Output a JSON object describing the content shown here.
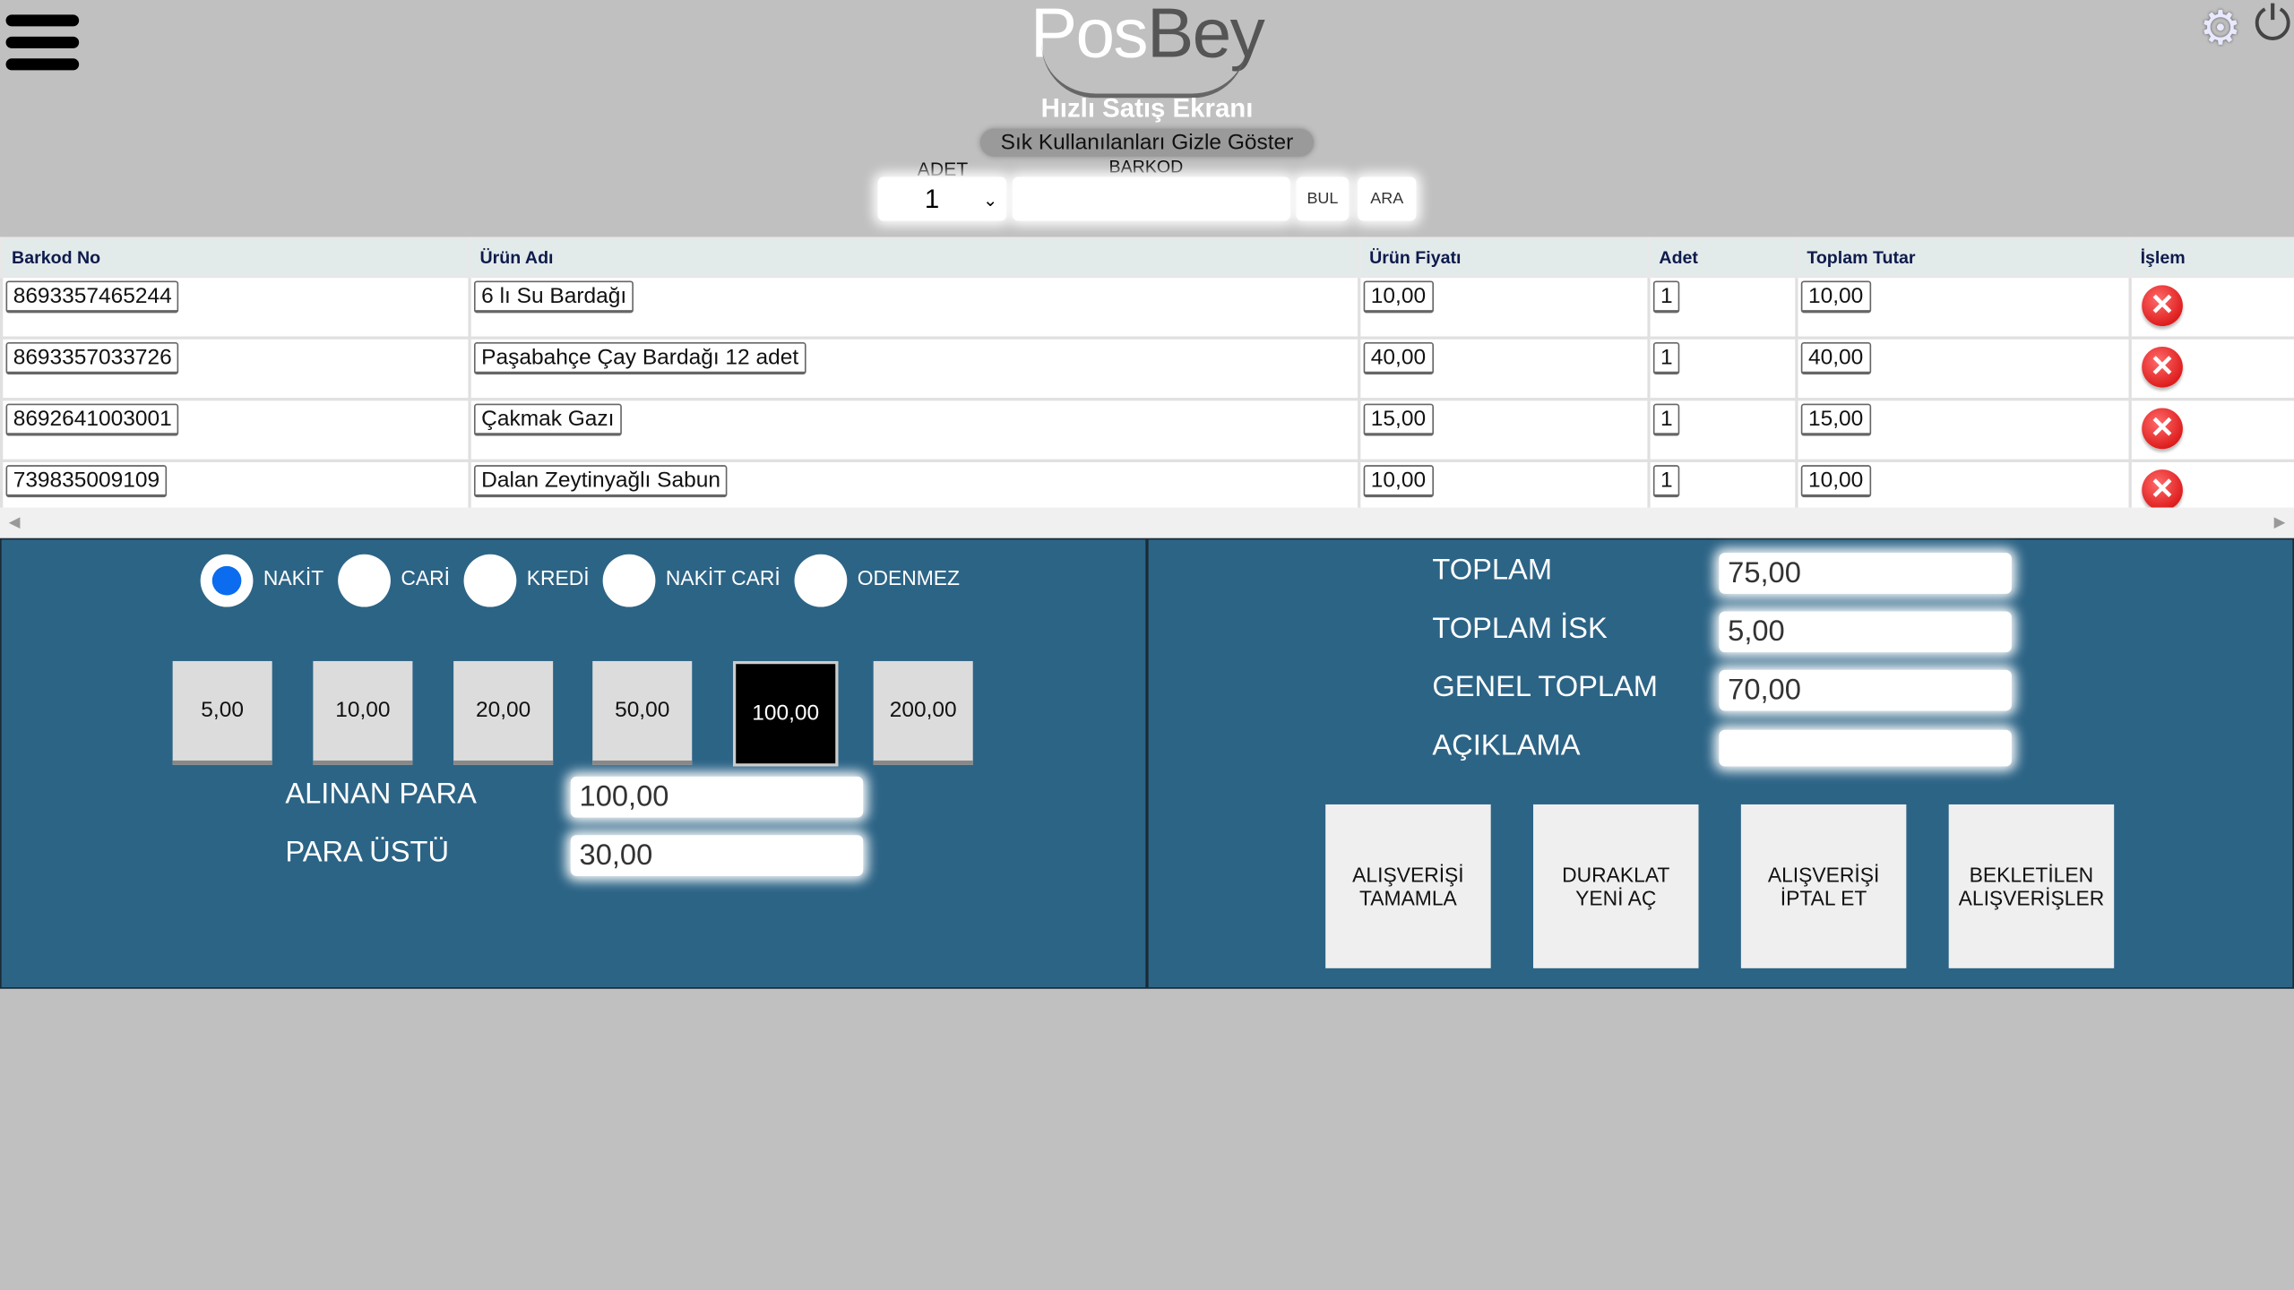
{
  "header": {
    "logo": {
      "part1": "Pos",
      "part2": "Bey"
    },
    "title": "Hızlı Satış Ekranı",
    "toggle_favorites": "Sık  Kullanılanları Gizle Göster",
    "adet_label": "ADET",
    "adet_value": "1",
    "barkod_label": "BARKOD",
    "barkod_value": "",
    "bul_label": "BUL",
    "ara_label": "ARA",
    "icons": [
      "menu-icon",
      "gear-icon",
      "power-icon"
    ]
  },
  "table": {
    "columns": [
      "Barkod No",
      "Ürün Adı",
      "Ürün Fiyatı",
      "Adet",
      "Toplam Tutar",
      "İşlem"
    ],
    "rows": [
      {
        "barcode": "8693357465244",
        "name": "6 lı Su Bardağı",
        "price": "10,00",
        "qty": "1",
        "total": "10,00"
      },
      {
        "barcode": "8693357033726",
        "name": "Paşabahçe Çay Bardağı 12 adet",
        "price": "40,00",
        "qty": "1",
        "total": "40,00"
      },
      {
        "barcode": "8692641003001",
        "name": "Çakmak Gazı",
        "price": "15,00",
        "qty": "1",
        "total": "15,00"
      },
      {
        "barcode": "739835009109",
        "name": "Dalan Zeytinyağlı Sabun",
        "price": "10,00",
        "qty": "1",
        "total": "10,00"
      }
    ]
  },
  "payment": {
    "methods": [
      {
        "label": "NAKİT",
        "selected": true
      },
      {
        "label": "CARİ",
        "selected": false
      },
      {
        "label": "KREDİ",
        "selected": false
      },
      {
        "label": "NAKİT CARİ",
        "selected": false
      },
      {
        "label": "ODENMEZ",
        "selected": false
      }
    ],
    "cash_buttons": [
      {
        "label": "5,00",
        "selected": false
      },
      {
        "label": "10,00",
        "selected": false
      },
      {
        "label": "20,00",
        "selected": false
      },
      {
        "label": "50,00",
        "selected": false
      },
      {
        "label": "100,00",
        "selected": true
      },
      {
        "label": "200,00",
        "selected": false
      }
    ],
    "received_label": "ALINAN PARA",
    "received_value": "100,00",
    "change_label": "PARA ÜSTÜ",
    "change_value": "30,00"
  },
  "summary": {
    "total_label": "TOPLAM",
    "total_value": "75,00",
    "discount_label": "TOPLAM İSK",
    "discount_value": "5,00",
    "grand_label": "GENEL TOPLAM",
    "grand_value": "70,00",
    "note_label": "AÇIKLAMA",
    "note_value": "",
    "actions": [
      "ALIŞVERİŞİ\nTAMAMLA",
      "DURAKLAT\nYENİ AÇ",
      "ALIŞVERİŞİ\nİPTAL ET",
      "BEKLETİLEN\nALIŞVERİŞLER"
    ]
  },
  "colors": {
    "background": "#c0c0c0",
    "panel": "#2c6486",
    "radio_selected": "#0b6cf0",
    "delete": "#d10000"
  }
}
